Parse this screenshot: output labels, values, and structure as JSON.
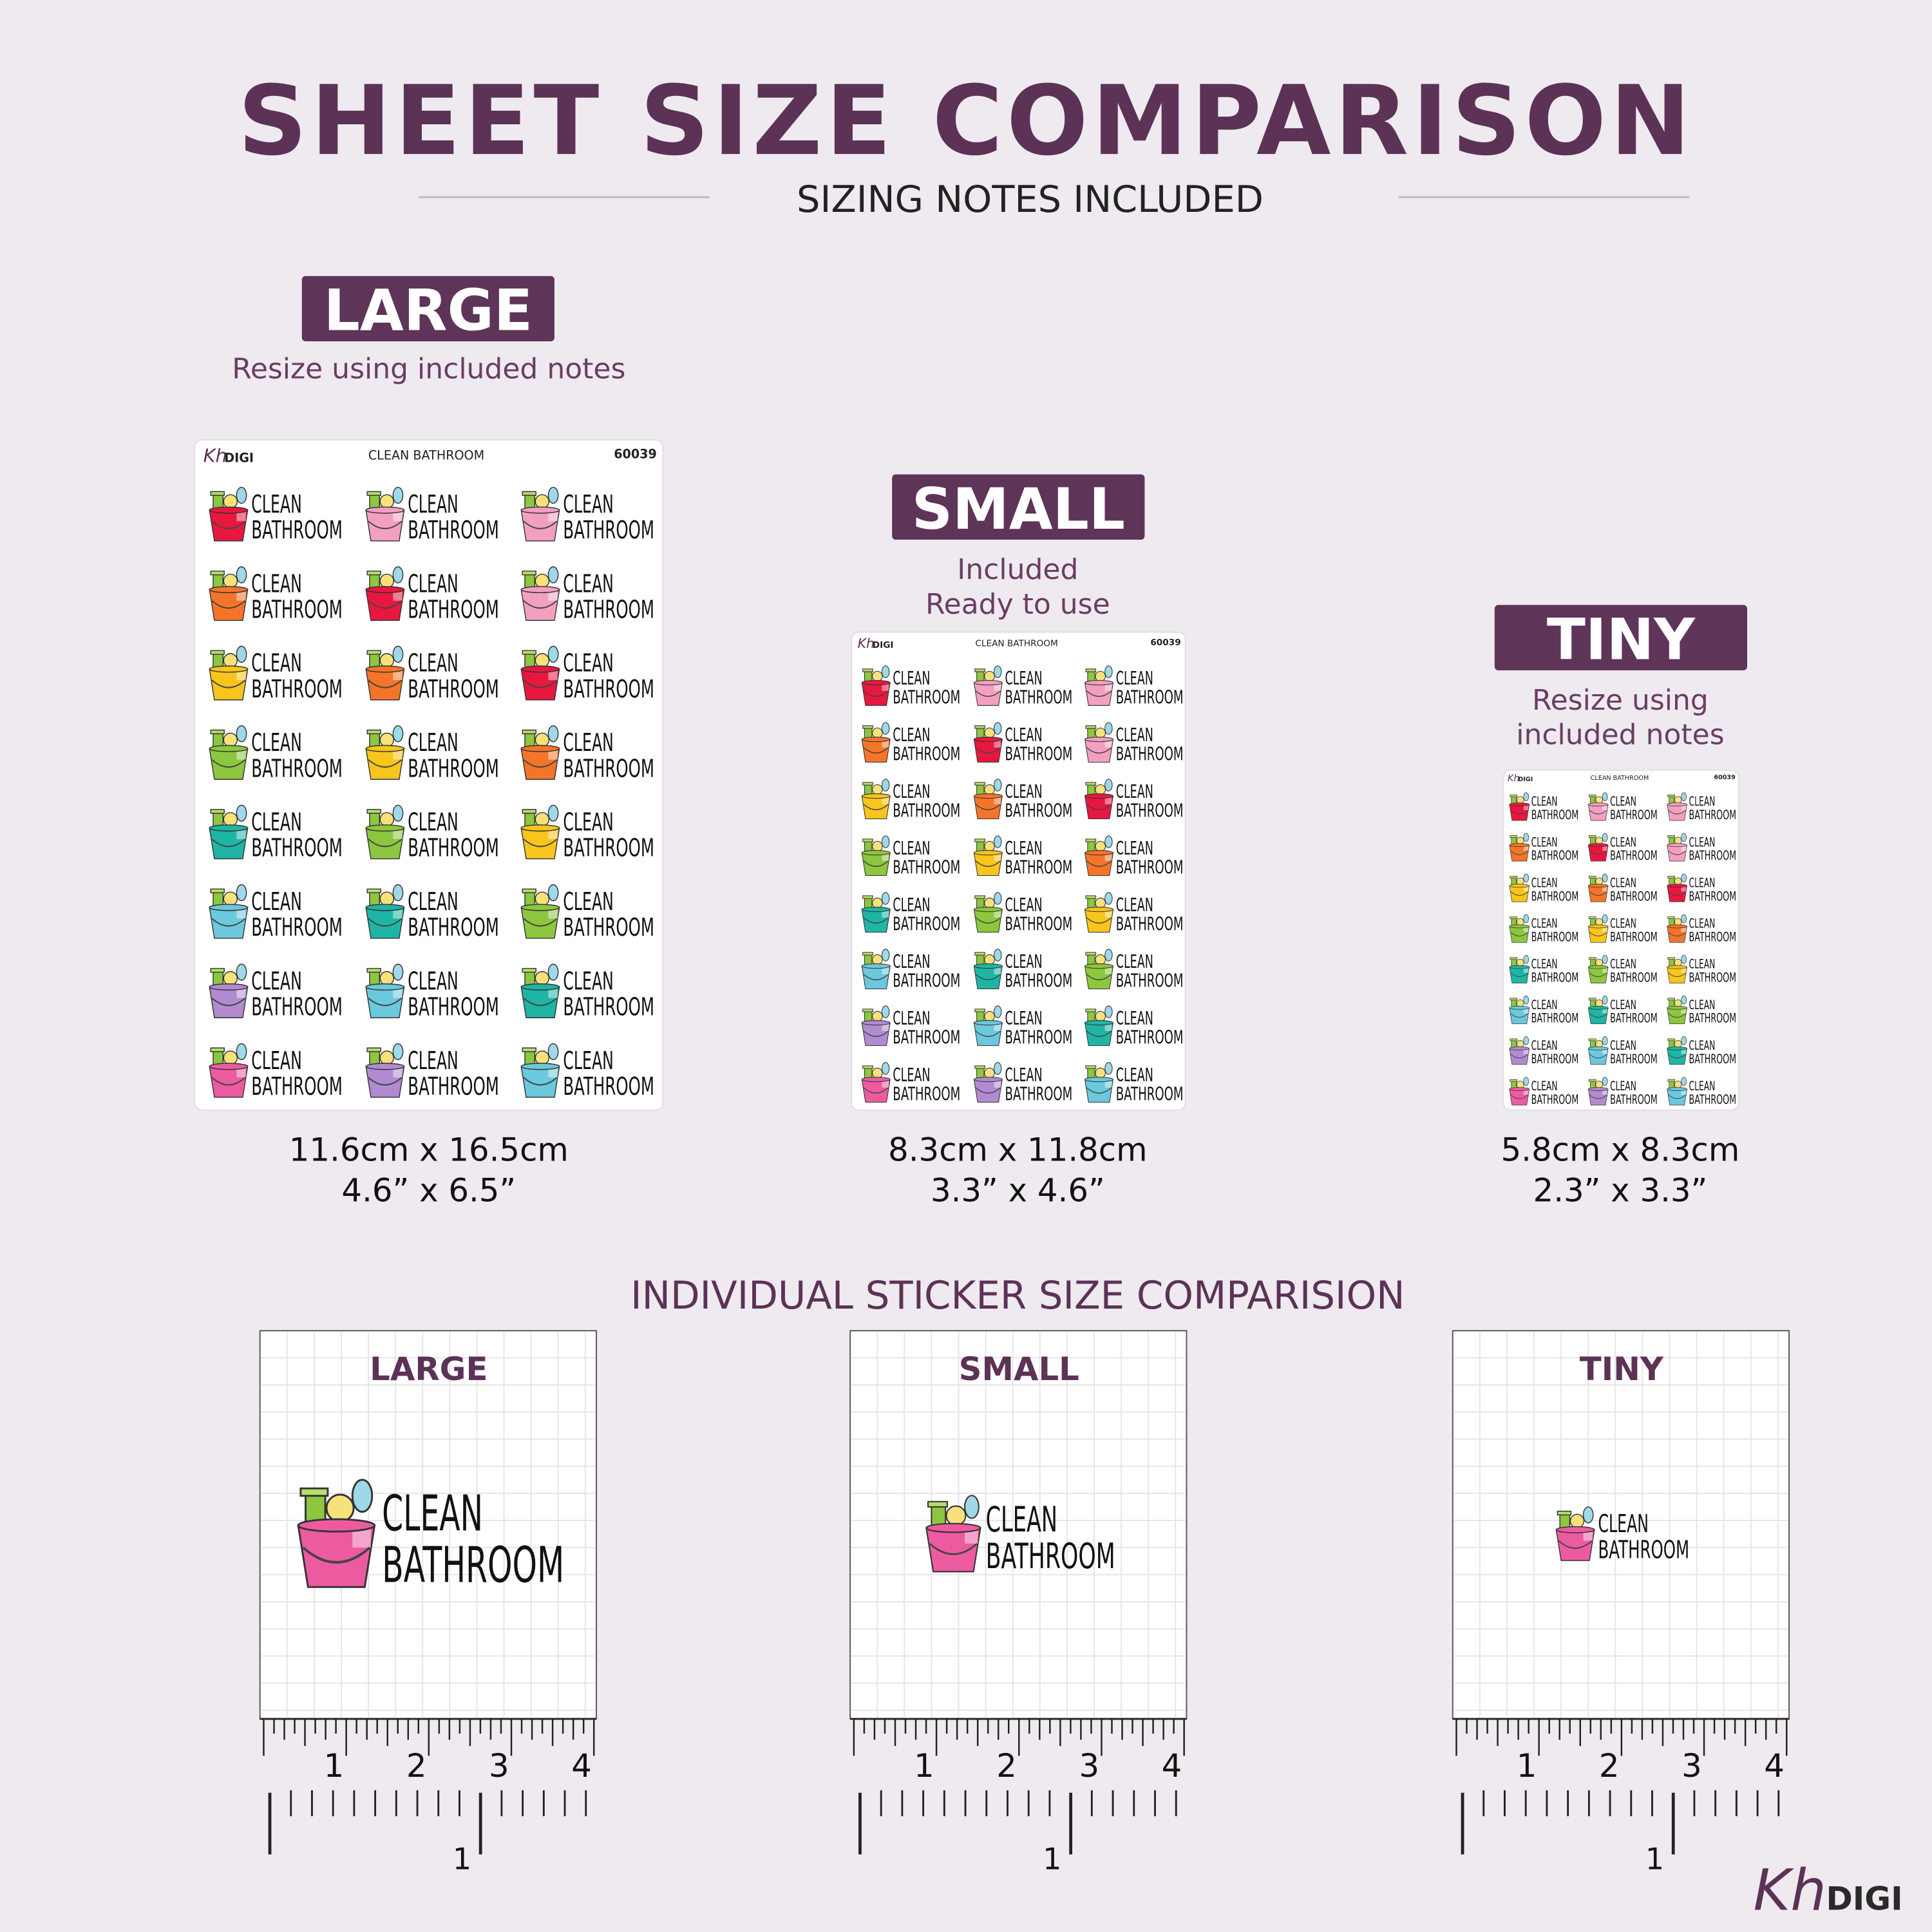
{
  "header": {
    "title": "SHEET SIZE COMPARISON",
    "subtitle": "SIZING NOTES INCLUDED"
  },
  "sheet_header": {
    "brand_kh": "Kh",
    "brand_digi": "DIGI",
    "name": "CLEAN BATHROOM",
    "code": "60039"
  },
  "sticker": {
    "line1": "CLEAN",
    "line2": "BATHROOM"
  },
  "bucket_colors": [
    "#e8173f",
    "#f3a0c0",
    "#f3a0c0",
    "#f4752a",
    "#e8173f",
    "#f3a0c0",
    "#f7c51c",
    "#f4752a",
    "#e8173f",
    "#8dc63f",
    "#f7c51c",
    "#f4752a",
    "#1fb5a5",
    "#8dc63f",
    "#f7c51c",
    "#6cc8dc",
    "#1fb5a5",
    "#8dc63f",
    "#b18ad0",
    "#6cc8dc",
    "#1fb5a5",
    "#ec5ba0",
    "#b18ad0",
    "#6cc8dc"
  ],
  "sheets": [
    {
      "badge": "LARGE",
      "note_lines": [
        "Resize using included notes"
      ],
      "size_cm": "11.6cm x 16.5cm",
      "size_in": "4.6” x 6.5”"
    },
    {
      "badge": "SMALL",
      "note_lines": [
        "Included",
        "Ready to use"
      ],
      "size_cm": "8.3cm x 11.8cm",
      "size_in": "3.3” x 4.6”"
    },
    {
      "badge": "TINY",
      "note_lines": [
        "Resize using",
        "included notes"
      ],
      "size_cm": "5.8cm x 8.3cm",
      "size_in": "2.3” x 3.3”"
    }
  ],
  "section_title": "INDIVIDUAL STICKER SIZE COMPARISION",
  "cards": [
    {
      "label": "LARGE"
    },
    {
      "label": "SMALL"
    },
    {
      "label": "TINY"
    }
  ],
  "card_sticker_color": "#ec5ba0",
  "ruler": {
    "inch_labels": [
      "1",
      "2",
      "3",
      "4"
    ],
    "cm_label": "1"
  },
  "brand": {
    "kh": "Kh",
    "digi": "DIGI"
  }
}
